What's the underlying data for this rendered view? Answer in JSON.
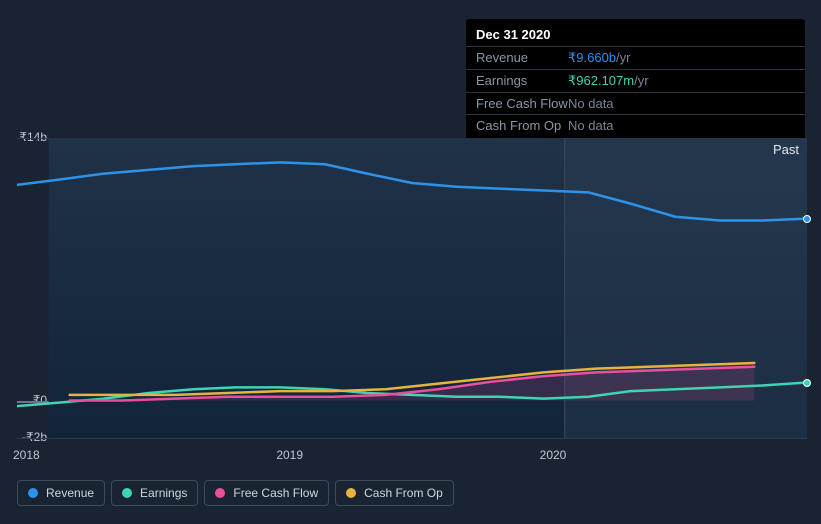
{
  "tooltip": {
    "title": "Dec 31 2020",
    "rows": [
      {
        "label": "Revenue",
        "value": "₹9.660b",
        "suffix": " /yr",
        "color": "#2e93e8"
      },
      {
        "label": "Earnings",
        "value": "₹962.107m",
        "suffix": " /yr",
        "color": "#3fd4b4"
      },
      {
        "label": "Free Cash Flow",
        "value": "No data",
        "suffix": "",
        "color": "#7a8494"
      },
      {
        "label": "Cash From Op",
        "value": "No data",
        "suffix": "",
        "color": "#7a8494"
      }
    ]
  },
  "chart": {
    "type": "line",
    "x_domain": [
      2018,
      2021
    ],
    "y_domain": [
      -2,
      14
    ],
    "y_ticks": [
      {
        "value": 14,
        "label": "₹14b"
      },
      {
        "value": 0,
        "label": "₹0"
      },
      {
        "value": -2,
        "label": "-₹2b"
      }
    ],
    "x_ticks": [
      {
        "value": 2018,
        "label": "2018"
      },
      {
        "value": 2019,
        "label": "2019"
      },
      {
        "value": 2020,
        "label": "2020"
      }
    ],
    "vertical_marker_x": 2020.08,
    "past_label": "Past",
    "past_region_start_x": 2020.08,
    "background_color": "#1a2332",
    "grid_color": "#2f3a4a",
    "zero_line_color": "#69758a",
    "plot_gradient_top": "#1f3248",
    "plot_gradient_bottom": "#12243a",
    "past_overlay_color": "rgba(50,65,85,0.35)",
    "line_width": 2.5,
    "series": [
      {
        "name": "Revenue",
        "color": "#2e93e8",
        "fill_opacity": 0,
        "points": [
          [
            2018.0,
            11.5
          ],
          [
            2018.17,
            11.8
          ],
          [
            2018.33,
            12.1
          ],
          [
            2018.5,
            12.3
          ],
          [
            2018.67,
            12.5
          ],
          [
            2018.83,
            12.6
          ],
          [
            2019.0,
            12.7
          ],
          [
            2019.17,
            12.6
          ],
          [
            2019.33,
            12.1
          ],
          [
            2019.5,
            11.6
          ],
          [
            2019.67,
            11.4
          ],
          [
            2019.83,
            11.3
          ],
          [
            2020.0,
            11.2
          ],
          [
            2020.17,
            11.1
          ],
          [
            2020.33,
            10.5
          ],
          [
            2020.5,
            9.8
          ],
          [
            2020.67,
            9.6
          ],
          [
            2020.83,
            9.6
          ],
          [
            2021.0,
            9.7
          ]
        ],
        "end_marker": true
      },
      {
        "name": "Earnings",
        "color": "#3fd4b4",
        "fill_opacity": 0,
        "points": [
          [
            2018.0,
            -0.3
          ],
          [
            2018.17,
            -0.1
          ],
          [
            2018.33,
            0.1
          ],
          [
            2018.5,
            0.4
          ],
          [
            2018.67,
            0.6
          ],
          [
            2018.83,
            0.7
          ],
          [
            2019.0,
            0.7
          ],
          [
            2019.17,
            0.6
          ],
          [
            2019.33,
            0.4
          ],
          [
            2019.5,
            0.3
          ],
          [
            2019.67,
            0.2
          ],
          [
            2019.83,
            0.2
          ],
          [
            2020.0,
            0.1
          ],
          [
            2020.17,
            0.2
          ],
          [
            2020.33,
            0.5
          ],
          [
            2020.5,
            0.6
          ],
          [
            2020.67,
            0.7
          ],
          [
            2020.83,
            0.8
          ],
          [
            2021.0,
            0.96
          ]
        ],
        "end_marker": true
      },
      {
        "name": "Free Cash Flow",
        "color": "#e84f9c",
        "fill_opacity": 0.15,
        "points": [
          [
            2018.2,
            0.0
          ],
          [
            2018.4,
            0.0
          ],
          [
            2018.6,
            0.1
          ],
          [
            2018.8,
            0.2
          ],
          [
            2019.0,
            0.2
          ],
          [
            2019.2,
            0.2
          ],
          [
            2019.4,
            0.3
          ],
          [
            2019.6,
            0.6
          ],
          [
            2019.8,
            1.0
          ],
          [
            2020.0,
            1.3
          ],
          [
            2020.2,
            1.5
          ],
          [
            2020.4,
            1.6
          ],
          [
            2020.6,
            1.7
          ],
          [
            2020.8,
            1.8
          ]
        ],
        "end_marker": false
      },
      {
        "name": "Cash From Op",
        "color": "#e8b23f",
        "fill_opacity": 0,
        "points": [
          [
            2018.2,
            0.3
          ],
          [
            2018.4,
            0.3
          ],
          [
            2018.6,
            0.3
          ],
          [
            2018.8,
            0.4
          ],
          [
            2019.0,
            0.5
          ],
          [
            2019.2,
            0.5
          ],
          [
            2019.4,
            0.6
          ],
          [
            2019.6,
            0.9
          ],
          [
            2019.8,
            1.2
          ],
          [
            2020.0,
            1.5
          ],
          [
            2020.2,
            1.7
          ],
          [
            2020.4,
            1.8
          ],
          [
            2020.6,
            1.9
          ],
          [
            2020.8,
            2.0
          ]
        ],
        "end_marker": false
      }
    ]
  },
  "legend": {
    "items": [
      {
        "label": "Revenue",
        "color": "#2e93e8"
      },
      {
        "label": "Earnings",
        "color": "#3fd4b4"
      },
      {
        "label": "Free Cash Flow",
        "color": "#e84f9c"
      },
      {
        "label": "Cash From Op",
        "color": "#e8b23f"
      }
    ]
  }
}
